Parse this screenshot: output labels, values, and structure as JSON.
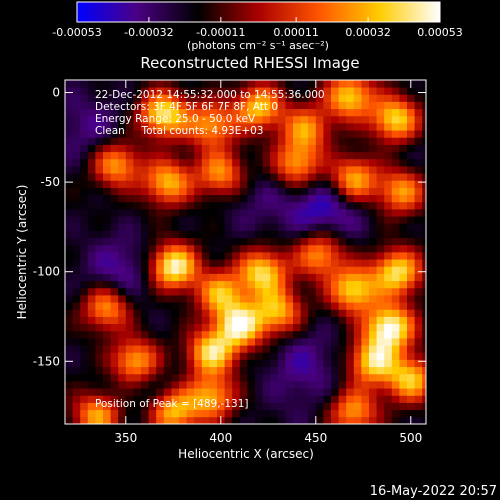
{
  "chart_data": {
    "type": "heatmap",
    "title": "Reconstructed RHESSI Image",
    "xlabel": "Heliocentric X (arcsec)",
    "ylabel": "Heliocentric Y (arcsec)",
    "xlim": [
      318,
      508
    ],
    "ylim": [
      -185,
      7
    ],
    "x_ticks": [
      350,
      400,
      450,
      500
    ],
    "y_ticks": [
      0,
      -50,
      -100,
      -150
    ],
    "colorbar": {
      "range": [
        -0.00053,
        0.00053
      ],
      "tick_values": [
        -0.00053,
        -0.00032,
        -0.00011,
        0.00011,
        0.00032,
        0.00053
      ],
      "tick_labels": [
        "-0.00053",
        "-0.00032",
        "-0.00011",
        "0.00011",
        "0.00032",
        "0.00053"
      ],
      "units_label": "(photons cm⁻² s⁻¹ asec⁻²)",
      "colors": [
        "#0000ff",
        "#4b0082",
        "#000000",
        "#aa0000",
        "#ff5500",
        "#ffcc00",
        "#ffffff"
      ]
    },
    "annotations": [
      "22-Dec-2012 14:55:32.000 to 14:55:36.000",
      "Detectors: 3F 4F 5F 6F 7F 8F, Att 0",
      "Energy Range: 25.0 - 50.0 keV",
      "Clean     Total counts: 4.93E+03"
    ],
    "peak_label": "Position of Peak = [489,-131]",
    "peak": [
      489,
      -131
    ],
    "pixel_size_arcsec": 4,
    "bright_sources": [
      {
        "x": 370,
        "y": -12,
        "value": 0.00045
      },
      {
        "x": 395,
        "y": -18,
        "value": 0.00028
      },
      {
        "x": 420,
        "y": -8,
        "value": 0.00035
      },
      {
        "x": 445,
        "y": -20,
        "value": 0.00025
      },
      {
        "x": 468,
        "y": -2,
        "value": 0.00038
      },
      {
        "x": 492,
        "y": -15,
        "value": 0.00042
      },
      {
        "x": 345,
        "y": -40,
        "value": 0.0003
      },
      {
        "x": 372,
        "y": -50,
        "value": 0.00033
      },
      {
        "x": 400,
        "y": -45,
        "value": 0.00027
      },
      {
        "x": 440,
        "y": -40,
        "value": 0.0003
      },
      {
        "x": 470,
        "y": -48,
        "value": 0.00035
      },
      {
        "x": 495,
        "y": -55,
        "value": 0.00028
      },
      {
        "x": 375,
        "y": -97,
        "value": 0.00052
      },
      {
        "x": 400,
        "y": -112,
        "value": 0.0003
      },
      {
        "x": 422,
        "y": -100,
        "value": 0.0004
      },
      {
        "x": 452,
        "y": -90,
        "value": 0.0003
      },
      {
        "x": 410,
        "y": -130,
        "value": 0.00045
      },
      {
        "x": 395,
        "y": -145,
        "value": 0.0004
      },
      {
        "x": 430,
        "y": -122,
        "value": 0.00032
      },
      {
        "x": 340,
        "y": -120,
        "value": 0.0003
      },
      {
        "x": 355,
        "y": -150,
        "value": 0.00035
      },
      {
        "x": 470,
        "y": -110,
        "value": 0.0004
      },
      {
        "x": 493,
        "y": -100,
        "value": 0.00042
      },
      {
        "x": 489,
        "y": -131,
        "value": 0.00053
      },
      {
        "x": 480,
        "y": -150,
        "value": 0.0004
      },
      {
        "x": 500,
        "y": -160,
        "value": 0.00035
      },
      {
        "x": 335,
        "y": -180,
        "value": 0.0003
      },
      {
        "x": 375,
        "y": -178,
        "value": 0.00035
      },
      {
        "x": 395,
        "y": -170,
        "value": 0.0003
      },
      {
        "x": 470,
        "y": -178,
        "value": 0.00028
      }
    ],
    "dim_regions": [
      {
        "x": 330,
        "y": -20,
        "value": -0.00035
      },
      {
        "x": 348,
        "y": -100,
        "value": -0.0004
      },
      {
        "x": 455,
        "y": -65,
        "value": -0.00045
      },
      {
        "x": 360,
        "y": -165,
        "value": -0.0003
      },
      {
        "x": 445,
        "y": -150,
        "value": -0.00035
      },
      {
        "x": 420,
        "y": -60,
        "value": -0.0003
      },
      {
        "x": 500,
        "y": -30,
        "value": -0.00025
      },
      {
        "x": 400,
        "y": -80,
        "value": -0.0002
      },
      {
        "x": 440,
        "y": -170,
        "value": -0.00025
      }
    ]
  },
  "footer": {
    "timestamp": "16-May-2022 20:57"
  }
}
